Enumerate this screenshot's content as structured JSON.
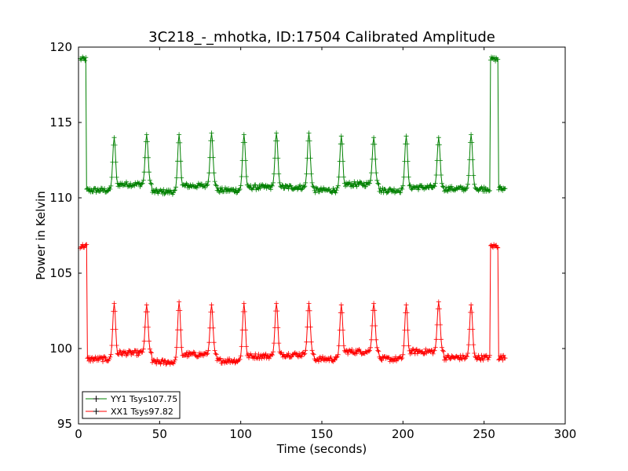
{
  "chart_data": {
    "type": "line",
    "title": "3C218_-_mhotka, ID:17504 Calibrated Amplitude",
    "xlabel": "Time (seconds)",
    "ylabel": "Power in Kelvin",
    "xlim": [
      0,
      300
    ],
    "ylim": [
      95,
      120
    ],
    "xticks": [
      "0",
      "50",
      "100",
      "150",
      "200",
      "250",
      "300"
    ],
    "yticks": [
      "95",
      "100",
      "105",
      "110",
      "115",
      "120"
    ],
    "grid": false,
    "legend_position": "lower-left",
    "marker": "+",
    "sample_interval_s": 0.5,
    "x_range": [
      1,
      263
    ],
    "series": [
      {
        "name": "YY1 Tsys107.75",
        "color": "#008000",
        "baseline": 110.6,
        "start_level": 119.2,
        "start_range": [
          1,
          4.5
        ],
        "end_level": 119.2,
        "end_range": [
          254,
          258.5
        ],
        "segment_levels": [
          110.5,
          110.9,
          110.4,
          110.8,
          110.5,
          110.7,
          110.7,
          110.5,
          110.9,
          110.5,
          110.7,
          110.6,
          110.6
        ],
        "pulse_times": [
          22,
          42,
          62,
          82,
          102,
          122,
          142,
          162,
          182,
          202,
          222,
          242
        ],
        "pulse_peaks": [
          114.0,
          114.2,
          114.2,
          114.3,
          114.2,
          114.3,
          114.3,
          114.1,
          114.0,
          114.1,
          114.0,
          114.2
        ]
      },
      {
        "name": "XX1 Tsys97.82",
        "color": "#ff0000",
        "baseline": 99.5,
        "start_level": 106.8,
        "start_range": [
          1,
          5
        ],
        "end_level": 106.8,
        "end_range": [
          254,
          258.5
        ],
        "segment_levels": [
          99.3,
          99.7,
          99.1,
          99.6,
          99.2,
          99.5,
          99.6,
          99.3,
          99.8,
          99.3,
          99.8,
          99.4,
          99.4
        ],
        "pulse_times": [
          22,
          42,
          62,
          82,
          102,
          122,
          142,
          162,
          182,
          202,
          222,
          242
        ],
        "pulse_peaks": [
          103.0,
          102.9,
          103.1,
          102.9,
          103.0,
          103.0,
          103.0,
          102.9,
          103.0,
          102.9,
          103.1,
          102.9
        ]
      }
    ]
  }
}
